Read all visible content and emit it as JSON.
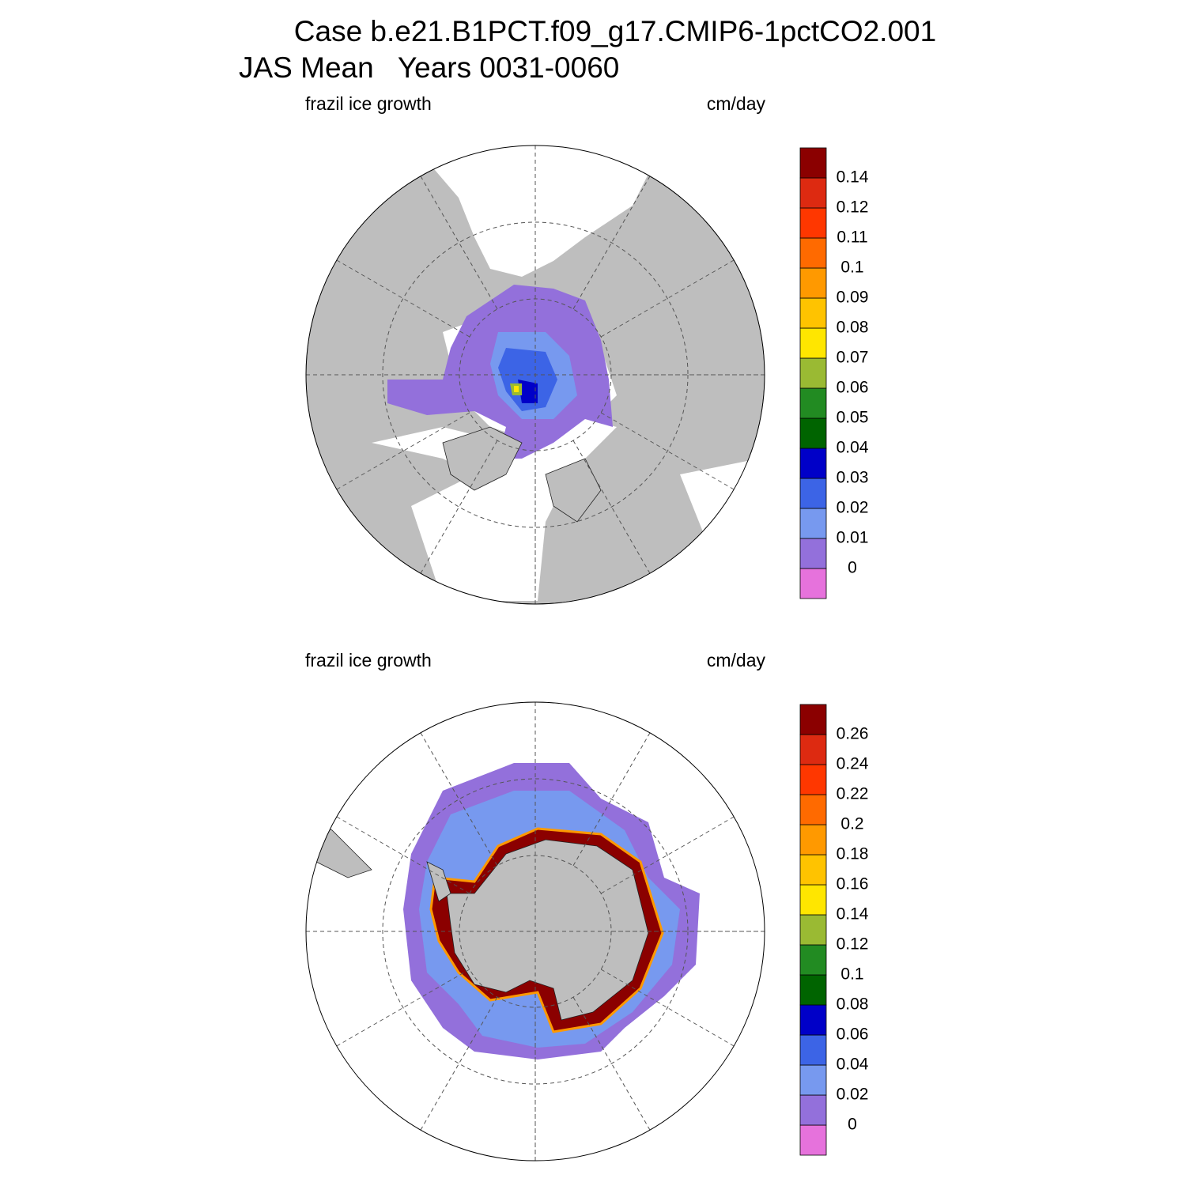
{
  "title": {
    "line1": "Case b.e21.B1PCT.f09_g17.CMIP6-1pctCO2.001",
    "line2": "JAS Mean   Years 0031-0060"
  },
  "panels": [
    {
      "left_label": "frazil ice growth",
      "right_label": "cm/day",
      "colorbar": {
        "levels": [
          0,
          0.01,
          0.02,
          0.03,
          0.04,
          0.05,
          0.06,
          0.07,
          0.08,
          0.09,
          0.1,
          0.11,
          0.12,
          0.14
        ],
        "colors": [
          "#e672dc",
          "#9370db",
          "#7799ef",
          "#3c64e6",
          "#0000c8",
          "#006400",
          "#228b22",
          "#9aba33",
          "#ffe600",
          "#ffc300",
          "#ff9900",
          "#ff6a00",
          "#ff3700",
          "#dd2a11",
          "#8b0000"
        ]
      }
    },
    {
      "left_label": "frazil ice growth",
      "right_label": "cm/day",
      "colorbar": {
        "levels": [
          0,
          0.02,
          0.04,
          0.06,
          0.08,
          0.1,
          0.12,
          0.14,
          0.16,
          0.18,
          0.2,
          0.22,
          0.24,
          0.26
        ],
        "colors": [
          "#e672dc",
          "#9370db",
          "#7799ef",
          "#3c64e6",
          "#0000c8",
          "#006400",
          "#228b22",
          "#9aba33",
          "#ffe600",
          "#ffc300",
          "#ff9900",
          "#ff6a00",
          "#ff3700",
          "#dd2a11",
          "#8b0000"
        ]
      }
    }
  ]
}
